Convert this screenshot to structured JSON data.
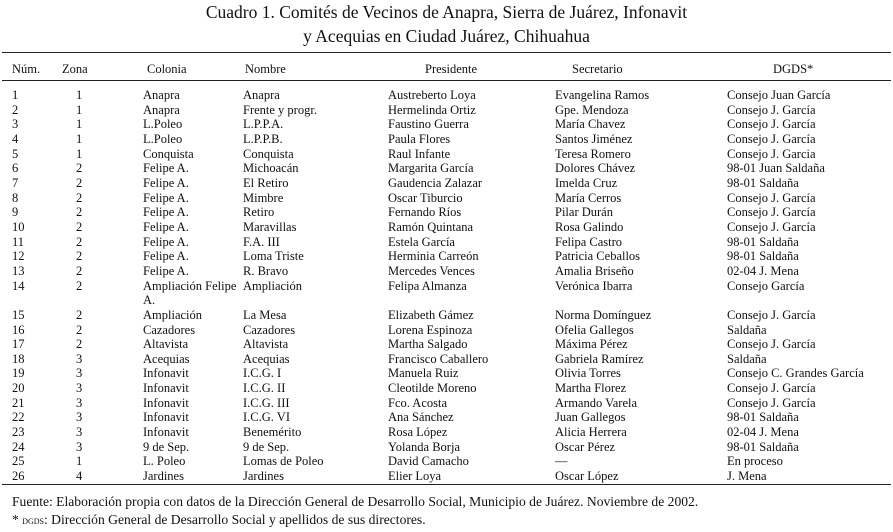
{
  "title": [
    "Cuadro 1. Comités de Vecinos de Anapra, Sierra de Juárez, Infonavit",
    "y Acequias en Ciudad Juárez, Chihuahua"
  ],
  "table": {
    "header": [
      "Núm.",
      "Zona",
      "Colonia",
      "Nombre",
      "Presidente",
      "Secretario",
      "DGDS*"
    ],
    "rows": [
      [
        "1",
        "1",
        "Anapra",
        "Anapra",
        "Austreberto Loya",
        "Evangelina Ramos",
        "Consejo Juan García"
      ],
      [
        "2",
        "1",
        "Anapra",
        "Frente y progr.",
        "Hermelinda Ortiz",
        "Gpe. Mendoza",
        "Consejo J. García"
      ],
      [
        "3",
        "1",
        "L.Poleo",
        "L.P.P.A.",
        "Faustino Guerra",
        "María Chavez",
        "Consejo J. García"
      ],
      [
        "4",
        "1",
        "L.Poleo",
        "L.P.P.B.",
        "Paula Flores",
        "Santos Jiménez",
        "Consejo J. García"
      ],
      [
        "5",
        "1",
        "Conquista",
        "Conquista",
        "Raul Infante",
        "Teresa Romero",
        "Consejo J. Garcia"
      ],
      [
        "6",
        "2",
        "Felipe A.",
        "Michoacán",
        "Margarita García",
        "Dolores Chávez",
        "98-01 Juan Saldaña"
      ],
      [
        "7",
        "2",
        "Felipe A.",
        "El Retiro",
        "Gaudencia Zalazar",
        "Imelda Cruz",
        "98-01 Saldaña"
      ],
      [
        "8",
        "2",
        "Felipe A.",
        "Mimbre",
        "Oscar Tiburcio",
        "María Cerros",
        "Consejo J. García"
      ],
      [
        "9",
        "2",
        "Felipe A.",
        "Retiro",
        "Fernando Ríos",
        "Pilar Durán",
        "Consejo J. García"
      ],
      [
        "10",
        "2",
        "Felipe A.",
        "Maravillas",
        "Ramón Quintana",
        "Rosa Galindo",
        "Consejo J. García"
      ],
      [
        "11",
        "2",
        "Felipe A.",
        "F.A. III",
        "Estela García",
        "Felipa Castro",
        "98-01 Saldaña"
      ],
      [
        "12",
        "2",
        "Felipe A.",
        "Loma Triste",
        "Herminia Carreón",
        "Patricia Ceballos",
        "98-01 Saldaña"
      ],
      [
        "13",
        "2",
        "Felipe A.",
        "R. Bravo",
        "Mercedes Vences",
        "Amalia Briseño",
        "02-04 J. Mena"
      ],
      [
        "14",
        "2",
        "Ampliación Felipe A.",
        "Ampliación",
        "Felipa Almanza",
        "Verónica Ibarra",
        "Consejo García"
      ],
      [
        "15",
        "2",
        "Ampliación",
        "La Mesa",
        "Elizabeth Gámez",
        "Norma Domínguez",
        "Consejo J. García"
      ],
      [
        "16",
        "2",
        "Cazadores",
        "Cazadores",
        "Lorena Espinoza",
        "Ofelia Gallegos",
        "Saldaña"
      ],
      [
        "17",
        "2",
        "Altavista",
        "Altavista",
        "Martha Salgado",
        "Máxima Pérez",
        "Consejo J. García"
      ],
      [
        "18",
        "3",
        "Acequias",
        "Acequias",
        "Francisco Caballero",
        "Gabriela Ramírez",
        "Saldaña"
      ],
      [
        "19",
        "3",
        "Infonavit",
        "I.C.G. I",
        "Manuela Ruiz",
        "Olivia Torres",
        "Consejo C. Grandes García"
      ],
      [
        "20",
        "3",
        "Infonavit",
        "I.C.G. II",
        "Cleotilde Moreno",
        "Martha Florez",
        "Consejo J. García"
      ],
      [
        "21",
        "3",
        "Infonavit",
        "I.C.G. III",
        "Fco. Acosta",
        "Armando Varela",
        "Consejo J. García"
      ],
      [
        "22",
        "3",
        "Infonavit",
        "I.C.G. VI",
        "Ana Sánchez",
        "Juan Gallegos",
        "98-01 Saldaña"
      ],
      [
        "23",
        "3",
        "Infonavit",
        "Benemérito",
        "Rosa López",
        "Alicia Herrera",
        "02-04 J. Mena"
      ],
      [
        "24",
        "3",
        "9 de Sep.",
        "9 de Sep.",
        "Yolanda Borja",
        "Oscar Pérez",
        "98-01 Saldaña"
      ],
      [
        "25",
        "1",
        "L. Poleo",
        "Lomas de Poleo",
        "David Camacho",
        "—",
        "En proceso"
      ],
      [
        "26",
        "4",
        "Jardines",
        "Jardines",
        "Elier Loya",
        "Oscar López",
        "J. Mena"
      ]
    ]
  },
  "notes": {
    "source": "Fuente: Elaboración propia con datos de la Dirección General de Desarrollo Social, Municipio de Juárez. Noviembre de 2002.",
    "footnote_marker": "*",
    "footnote_term": "DGDS",
    "footnote_text": ": Dirección General de Desarrollo Social y apellidos de sus directores."
  }
}
